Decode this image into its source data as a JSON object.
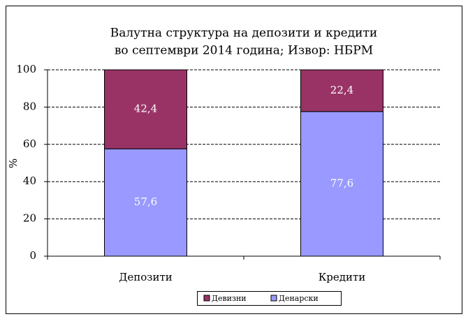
{
  "chart_data": {
    "type": "stacked_bar",
    "title": [
      "Валутна структура на депозити и кредити",
      "во септември 2014 година; Извор: НБРМ"
    ],
    "y_label": "%",
    "categories": [
      "Депозити",
      "Кредити"
    ],
    "series": [
      {
        "name": "Денарски",
        "color": "#9999ff",
        "values": [
          57.6,
          77.6
        ],
        "value_labels": [
          "57,6",
          "77,6"
        ]
      },
      {
        "name": "Девизни",
        "color": "#993366",
        "values": [
          42.4,
          22.4
        ],
        "value_labels": [
          "42,4",
          "22,4"
        ]
      }
    ],
    "ylim": [
      0,
      100
    ],
    "yticks": [
      0,
      20,
      40,
      60,
      80,
      100
    ],
    "grid": true,
    "legend": "bottom"
  }
}
